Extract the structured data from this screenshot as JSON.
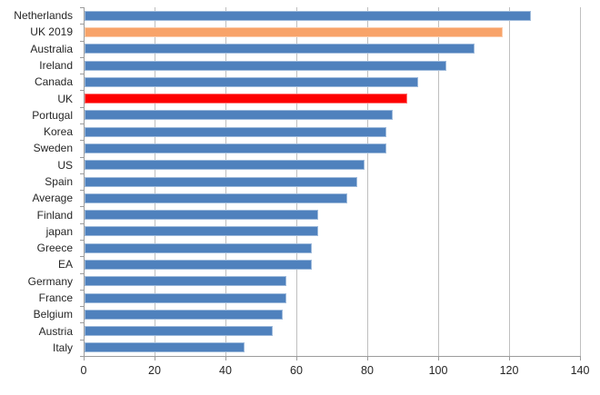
{
  "chart": {
    "title": "",
    "background_color": "#FFFFFF"
  },
  "chart_data": {
    "type": "bar",
    "orientation": "horizontal",
    "title": "",
    "xlabel": "",
    "ylabel": "",
    "legend": "none",
    "grid": "vertical-major-only",
    "xlim": [
      0,
      140
    ],
    "xticks": [
      0,
      20,
      40,
      60,
      80,
      100,
      120,
      140
    ],
    "categories": [
      "Netherlands",
      "UK 2019",
      "Australia",
      "Ireland",
      "Canada",
      "UK",
      "Portugal",
      "Korea",
      "Sweden",
      "US",
      "Spain",
      "Average",
      "Finland",
      "japan",
      "Greece",
      "EA",
      "Germany",
      "France",
      "Belgium",
      "Austria",
      "Italy"
    ],
    "values": [
      126,
      118,
      110,
      102,
      94,
      91,
      87,
      85,
      85,
      79,
      77,
      74,
      66,
      66,
      64,
      64,
      57,
      57,
      56,
      53,
      45
    ],
    "default_bar_color": "#4F81BD",
    "highlight_bars": [
      {
        "category": "UK 2019",
        "color": "#F8A369"
      },
      {
        "category": "UK",
        "color": "#FE0000"
      }
    ],
    "gridline_color": "#BFBFBF",
    "axis_line_color": "#9C9C9C",
    "tick_color": "#9C9C9C",
    "text_color": "#262626"
  }
}
